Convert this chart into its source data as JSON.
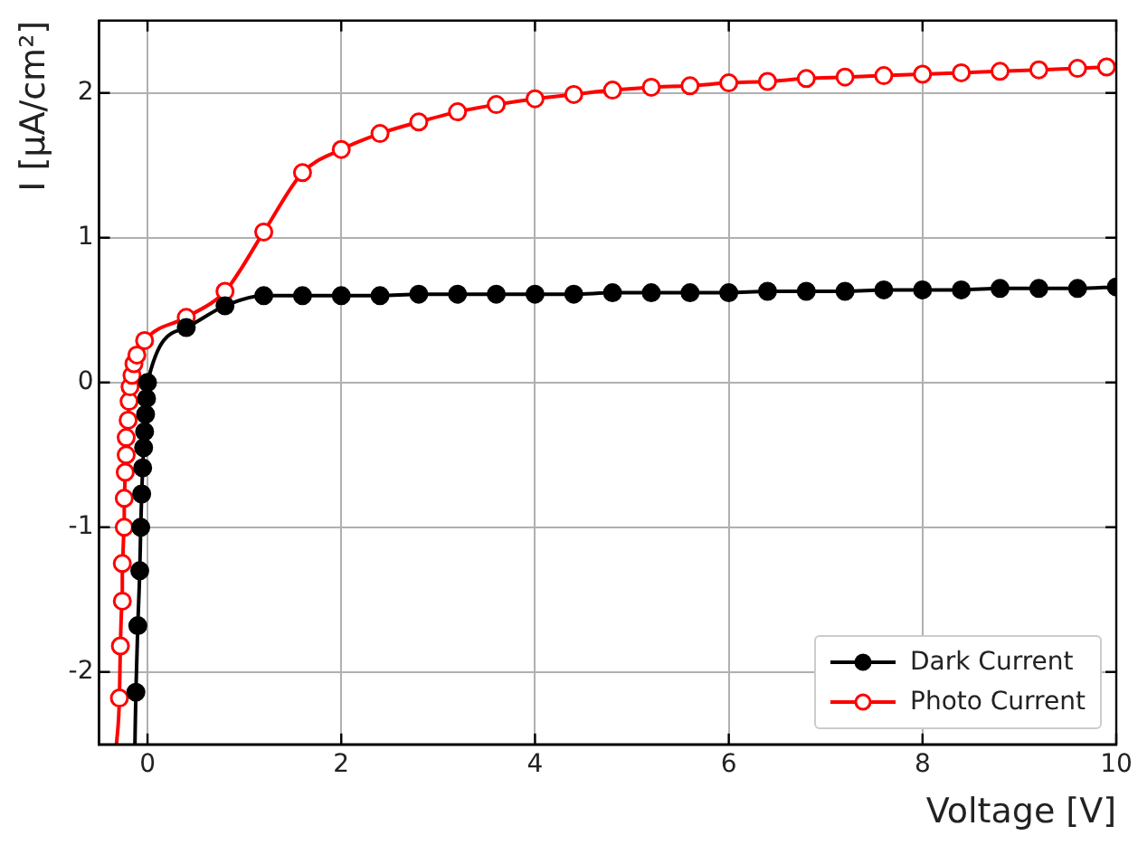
{
  "chart_data": {
    "type": "line",
    "xlabel": "Voltage [V]",
    "ylabel": "I [μA/cm²]",
    "xlim": [
      -0.5,
      10
    ],
    "ylim": [
      -2.5,
      2.5
    ],
    "xticks": [
      0,
      2,
      4,
      6,
      8,
      10
    ],
    "yticks": [
      -2,
      -1,
      0,
      1,
      2
    ],
    "grid": true,
    "legend": "bottom right",
    "marker": "circle",
    "line_style": "solid",
    "series": [
      {
        "name": "Dark Current",
        "color": "#000000",
        "x": [
          -0.13,
          -0.12,
          -0.1,
          -0.08,
          -0.07,
          -0.06,
          -0.05,
          -0.04,
          -0.03,
          -0.02,
          -0.01,
          0,
          0.4,
          0.8,
          1.2,
          1.6,
          2.0,
          2.4,
          2.8,
          3.2,
          3.6,
          4.0,
          4.4,
          4.8,
          5.2,
          5.6,
          6.0,
          6.4,
          6.8,
          7.2,
          7.6,
          8.0,
          8.4,
          8.8,
          9.2,
          9.6,
          10.0
        ],
        "values": [
          -2.5,
          -2.14,
          -1.68,
          -1.3,
          -1.0,
          -0.77,
          -0.59,
          -0.45,
          -0.34,
          -0.22,
          -0.11,
          0,
          0.38,
          0.53,
          0.6,
          0.6,
          0.6,
          0.6,
          0.61,
          0.61,
          0.61,
          0.61,
          0.61,
          0.62,
          0.62,
          0.62,
          0.62,
          0.63,
          0.63,
          0.63,
          0.64,
          0.64,
          0.64,
          0.65,
          0.65,
          0.65,
          0.66
        ]
      },
      {
        "name": "Photo Current",
        "color": "#ff0000",
        "x": [
          -0.32,
          -0.29,
          -0.28,
          -0.26,
          -0.26,
          -0.24,
          -0.24,
          -0.23,
          -0.22,
          -0.22,
          -0.2,
          -0.19,
          -0.18,
          -0.16,
          -0.14,
          -0.11,
          -0.03,
          0.4,
          0.8,
          1.2,
          1.6,
          2.0,
          2.4,
          2.8,
          3.2,
          3.6,
          4.0,
          4.4,
          4.8,
          5.2,
          5.6,
          6.0,
          6.4,
          6.8,
          7.2,
          7.6,
          8.0,
          8.4,
          8.8,
          9.2,
          9.6,
          9.9
        ],
        "values": [
          -2.5,
          -2.18,
          -1.82,
          -1.51,
          -1.25,
          -1.0,
          -0.8,
          -0.62,
          -0.5,
          -0.38,
          -0.26,
          -0.13,
          -0.03,
          0.05,
          0.13,
          0.19,
          0.29,
          0.45,
          0.63,
          1.04,
          1.45,
          1.61,
          1.72,
          1.8,
          1.87,
          1.92,
          1.96,
          1.99,
          2.02,
          2.04,
          2.05,
          2.07,
          2.08,
          2.1,
          2.11,
          2.12,
          2.13,
          2.14,
          2.15,
          2.16,
          2.17,
          2.18
        ]
      }
    ]
  }
}
